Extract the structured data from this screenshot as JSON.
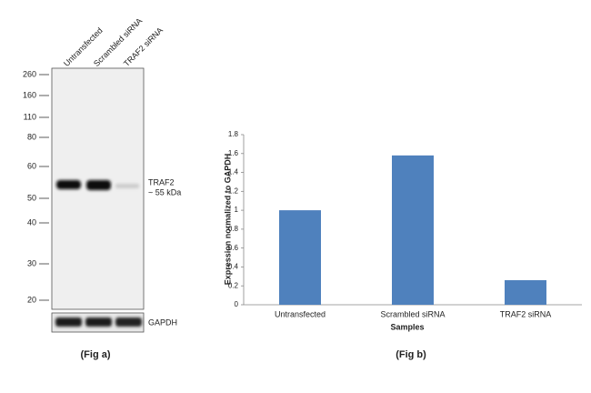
{
  "blot": {
    "lanes": [
      "Untransfected",
      "Scrambled siRNA",
      "TRAF2 siRNA"
    ],
    "markers": [
      260,
      160,
      110,
      80,
      60,
      50,
      40,
      30,
      20
    ],
    "band_label": "TRAF2",
    "band_size": "~ 55 kDa",
    "loading_control": "GAPDH",
    "caption": "(Fig a)"
  },
  "chart_data": {
    "type": "bar",
    "caption": "(Fig b)",
    "x_label": "Samples",
    "y_label": "Expression  normalized to GAPDH",
    "categories": [
      "Untransfected",
      "Scrambled siRNA",
      "TRAF2 siRNA"
    ],
    "values": [
      1.0,
      1.58,
      0.26
    ],
    "color": "#4f81bd",
    "ylim": [
      0,
      1.8
    ],
    "yticks": [
      0,
      0.2,
      0.4,
      0.6,
      0.8,
      1,
      1.2,
      1.4,
      1.6,
      1.8
    ],
    "grid": false
  }
}
